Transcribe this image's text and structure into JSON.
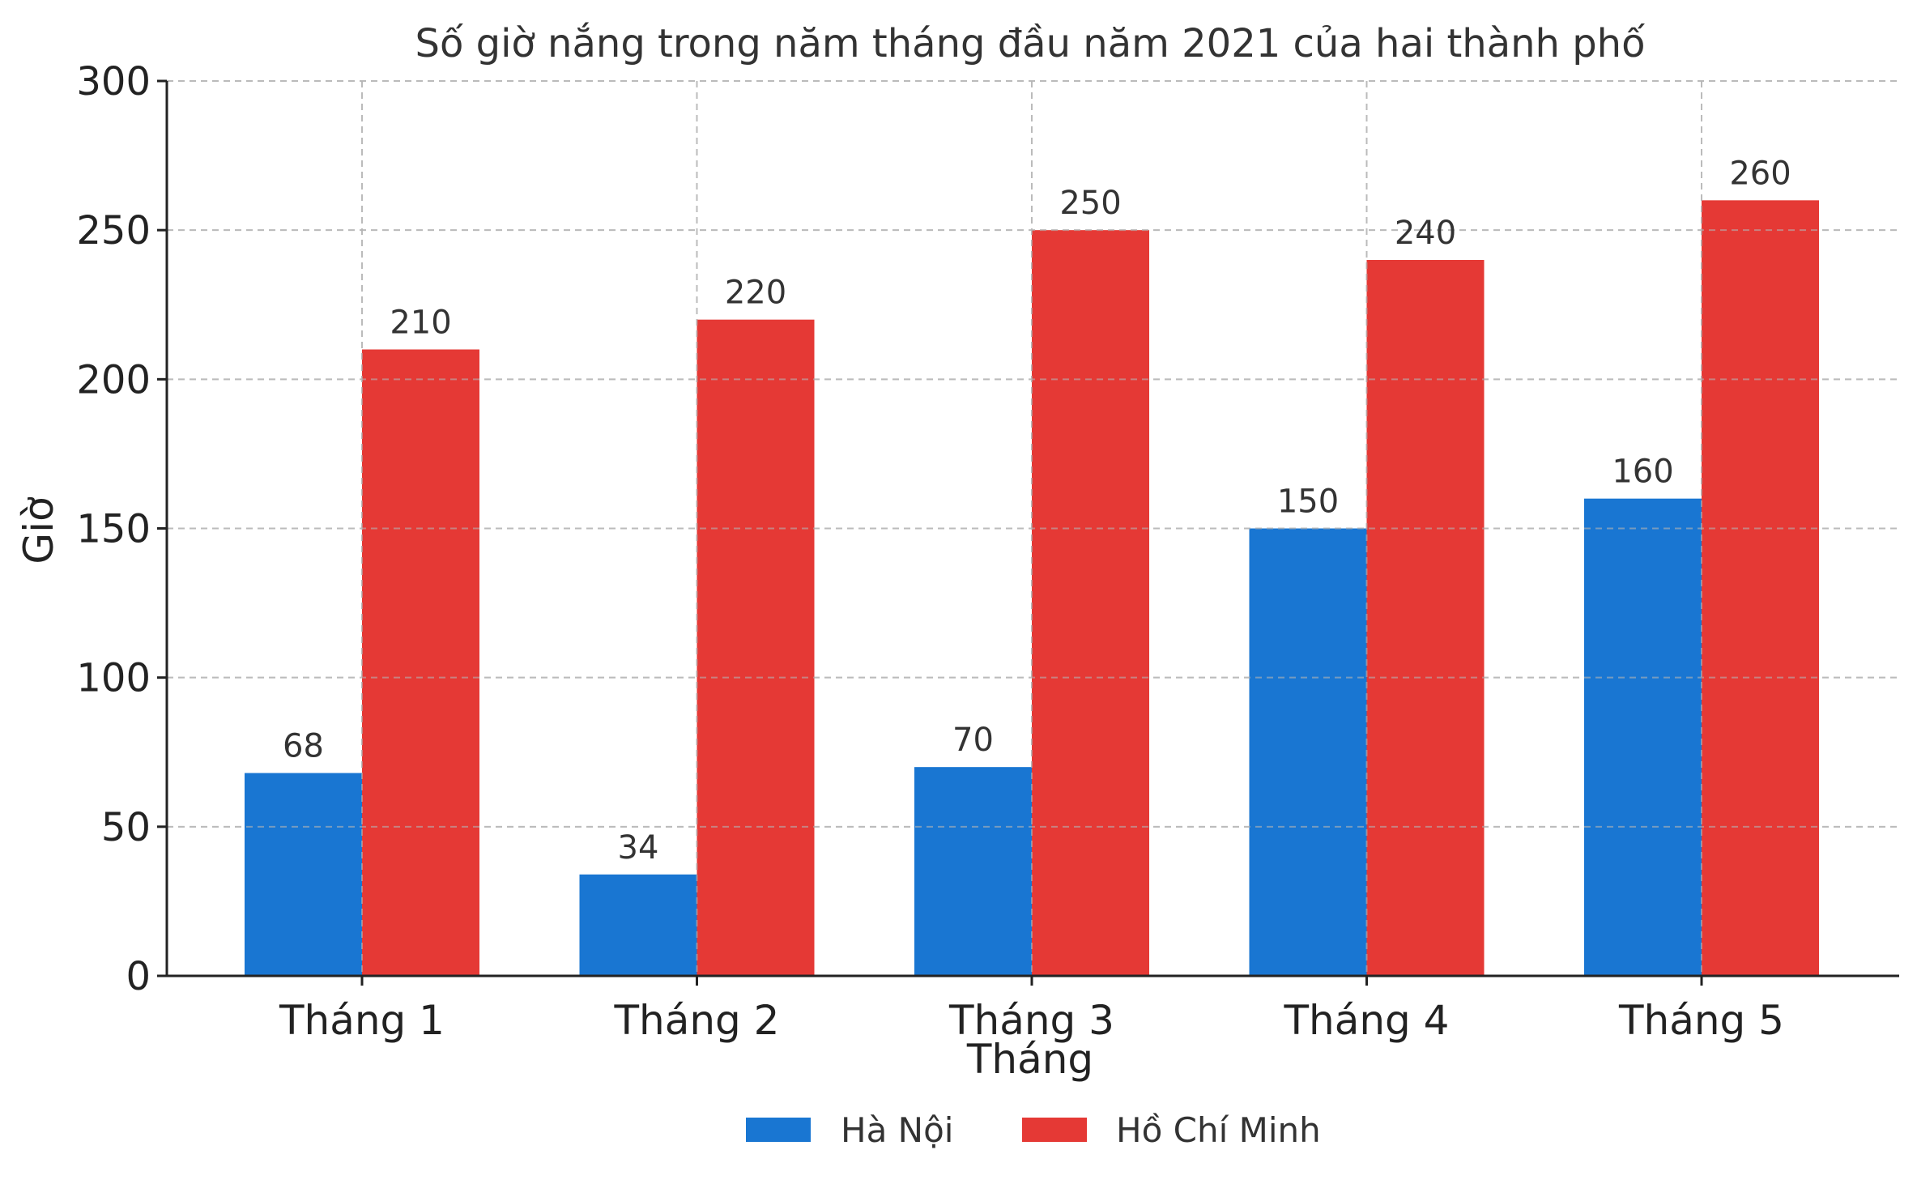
{
  "chart_data": {
    "type": "bar",
    "title": "Số giờ nắng trong năm tháng đầu năm 2021 của hai thành phố",
    "xlabel": "Tháng",
    "ylabel": "Giờ",
    "categories": [
      "Tháng 1",
      "Tháng 2",
      "Tháng 3",
      "Tháng 4",
      "Tháng 5"
    ],
    "series": [
      {
        "name": "Hà Nội",
        "color": "#1976D2",
        "values": [
          68,
          34,
          70,
          150,
          160
        ]
      },
      {
        "name": "Hồ Chí Minh",
        "color": "#E53935",
        "values": [
          210,
          220,
          250,
          240,
          260
        ]
      }
    ],
    "ylim": [
      0,
      300
    ],
    "yticks": [
      0,
      50,
      100,
      150,
      200,
      250,
      300
    ],
    "grid": true,
    "legend_position": "bottom-center",
    "data_labels": true
  }
}
